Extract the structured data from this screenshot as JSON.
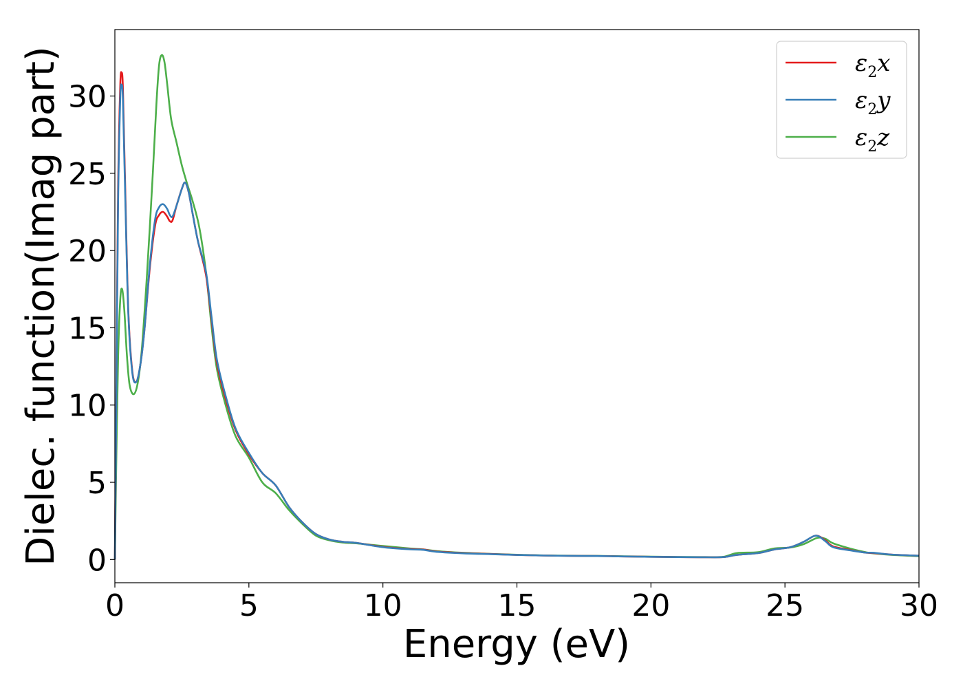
{
  "chart_data": {
    "type": "line",
    "xlabel": "Energy (eV)",
    "ylabel": "Dielec. function(Imag part)",
    "xlim": [
      0,
      30
    ],
    "ylim": [
      -1.5,
      34.3
    ],
    "xticks": [
      0,
      5,
      10,
      15,
      20,
      25,
      30
    ],
    "yticks": [
      0,
      5,
      10,
      15,
      20,
      25,
      30
    ],
    "grid": false,
    "legend_position": "top-right",
    "series": [
      {
        "name": "ε2x",
        "symbol": "ε",
        "sub": "2",
        "axis": "x",
        "color": "#e41a1c",
        "points": [
          [
            0,
            0
          ],
          [
            0.05,
            10
          ],
          [
            0.12,
            24
          ],
          [
            0.2,
            30.6
          ],
          [
            0.25,
            31.5
          ],
          [
            0.3,
            30.5
          ],
          [
            0.38,
            24.5
          ],
          [
            0.5,
            16.2
          ],
          [
            0.65,
            12.2
          ],
          [
            0.8,
            11.5
          ],
          [
            0.95,
            12.6
          ],
          [
            1.1,
            14.8
          ],
          [
            1.3,
            18.8
          ],
          [
            1.5,
            21.6
          ],
          [
            1.65,
            22.3
          ],
          [
            1.8,
            22.5
          ],
          [
            1.95,
            22.2
          ],
          [
            2.05,
            21.9
          ],
          [
            2.15,
            21.95
          ],
          [
            2.3,
            22.9
          ],
          [
            2.5,
            24.0
          ],
          [
            2.62,
            24.4
          ],
          [
            2.75,
            23.8
          ],
          [
            2.9,
            22.4
          ],
          [
            3.1,
            20.6
          ],
          [
            3.4,
            18.4
          ],
          [
            3.6,
            15.6
          ],
          [
            3.8,
            12.8
          ],
          [
            4.1,
            10.6
          ],
          [
            4.5,
            8.4
          ],
          [
            5.0,
            6.8
          ],
          [
            5.5,
            5.6
          ],
          [
            6.0,
            4.8
          ],
          [
            6.5,
            3.4
          ],
          [
            7.0,
            2.4
          ],
          [
            7.5,
            1.65
          ],
          [
            8.0,
            1.3
          ],
          [
            8.5,
            1.15
          ],
          [
            9.0,
            1.08
          ],
          [
            10.0,
            0.82
          ],
          [
            11.0,
            0.68
          ],
          [
            11.5,
            0.65
          ],
          [
            12.0,
            0.52
          ],
          [
            13.0,
            0.42
          ],
          [
            14.0,
            0.36
          ],
          [
            15.0,
            0.3
          ],
          [
            16.0,
            0.26
          ],
          [
            17.0,
            0.24
          ],
          [
            18.0,
            0.23
          ],
          [
            19.0,
            0.2
          ],
          [
            20.0,
            0.18
          ],
          [
            21.0,
            0.16
          ],
          [
            22.0,
            0.15
          ],
          [
            22.7,
            0.16
          ],
          [
            23.2,
            0.3
          ],
          [
            24.0,
            0.42
          ],
          [
            24.6,
            0.65
          ],
          [
            25.2,
            0.8
          ],
          [
            25.7,
            1.15
          ],
          [
            26.15,
            1.55
          ],
          [
            26.5,
            1.25
          ],
          [
            26.8,
            0.85
          ],
          [
            27.5,
            0.6
          ],
          [
            28.0,
            0.45
          ],
          [
            28.3,
            0.42
          ],
          [
            29.0,
            0.32
          ],
          [
            30.0,
            0.25
          ]
        ]
      },
      {
        "name": "ε2y",
        "symbol": "ε",
        "sub": "2",
        "axis": "y",
        "color": "#377eb8",
        "points": [
          [
            0,
            0
          ],
          [
            0.05,
            9.5
          ],
          [
            0.12,
            23
          ],
          [
            0.2,
            29.8
          ],
          [
            0.25,
            30.7
          ],
          [
            0.3,
            29.8
          ],
          [
            0.38,
            24
          ],
          [
            0.5,
            16
          ],
          [
            0.65,
            12.1
          ],
          [
            0.8,
            11.5
          ],
          [
            0.95,
            12.6
          ],
          [
            1.1,
            14.8
          ],
          [
            1.3,
            19
          ],
          [
            1.5,
            22
          ],
          [
            1.65,
            22.8
          ],
          [
            1.8,
            23.0
          ],
          [
            1.95,
            22.7
          ],
          [
            2.05,
            22.3
          ],
          [
            2.15,
            22.2
          ],
          [
            2.3,
            22.9
          ],
          [
            2.5,
            24.0
          ],
          [
            2.62,
            24.4
          ],
          [
            2.75,
            23.8
          ],
          [
            2.9,
            22.4
          ],
          [
            3.1,
            20.6
          ],
          [
            3.4,
            18.6
          ],
          [
            3.6,
            15.8
          ],
          [
            3.8,
            13.0
          ],
          [
            4.1,
            10.8
          ],
          [
            4.5,
            8.5
          ],
          [
            5.0,
            6.9
          ],
          [
            5.5,
            5.6
          ],
          [
            6.0,
            4.8
          ],
          [
            6.5,
            3.4
          ],
          [
            7.0,
            2.4
          ],
          [
            7.5,
            1.65
          ],
          [
            8.0,
            1.3
          ],
          [
            8.5,
            1.15
          ],
          [
            9.0,
            1.08
          ],
          [
            10.0,
            0.8
          ],
          [
            11.0,
            0.66
          ],
          [
            11.5,
            0.63
          ],
          [
            12.0,
            0.5
          ],
          [
            13.0,
            0.4
          ],
          [
            14.0,
            0.35
          ],
          [
            15.0,
            0.3
          ],
          [
            16.0,
            0.26
          ],
          [
            17.0,
            0.24
          ],
          [
            18.0,
            0.23
          ],
          [
            19.0,
            0.2
          ],
          [
            20.0,
            0.18
          ],
          [
            21.0,
            0.16
          ],
          [
            22.0,
            0.15
          ],
          [
            22.7,
            0.16
          ],
          [
            23.2,
            0.3
          ],
          [
            24.0,
            0.42
          ],
          [
            24.6,
            0.65
          ],
          [
            25.2,
            0.8
          ],
          [
            25.7,
            1.15
          ],
          [
            26.15,
            1.55
          ],
          [
            26.5,
            1.2
          ],
          [
            26.8,
            0.8
          ],
          [
            27.5,
            0.58
          ],
          [
            28.0,
            0.45
          ],
          [
            28.3,
            0.44
          ],
          [
            29.0,
            0.32
          ],
          [
            30.0,
            0.25
          ]
        ]
      },
      {
        "name": "ε2z",
        "symbol": "ε",
        "sub": "2",
        "axis": "z",
        "color": "#4daf4a",
        "points": [
          [
            0,
            0
          ],
          [
            0.05,
            6
          ],
          [
            0.12,
            13
          ],
          [
            0.2,
            16.8
          ],
          [
            0.27,
            17.5
          ],
          [
            0.35,
            16.2
          ],
          [
            0.45,
            13.2
          ],
          [
            0.55,
            11.3
          ],
          [
            0.7,
            10.7
          ],
          [
            0.85,
            11.4
          ],
          [
            1.0,
            13.5
          ],
          [
            1.2,
            18.5
          ],
          [
            1.4,
            24.5
          ],
          [
            1.55,
            29.5
          ],
          [
            1.65,
            32.0
          ],
          [
            1.75,
            32.65
          ],
          [
            1.85,
            32.2
          ],
          [
            1.95,
            30.8
          ],
          [
            2.1,
            28.5
          ],
          [
            2.3,
            27.0
          ],
          [
            2.5,
            25.5
          ],
          [
            2.7,
            24.3
          ],
          [
            2.9,
            23.2
          ],
          [
            3.15,
            21.5
          ],
          [
            3.4,
            18.6
          ],
          [
            3.6,
            15.2
          ],
          [
            3.8,
            12.4
          ],
          [
            4.1,
            10.2
          ],
          [
            4.5,
            8.0
          ],
          [
            5.0,
            6.6
          ],
          [
            5.5,
            5.0
          ],
          [
            6.0,
            4.3
          ],
          [
            6.5,
            3.2
          ],
          [
            7.0,
            2.3
          ],
          [
            7.5,
            1.55
          ],
          [
            8.0,
            1.25
          ],
          [
            8.5,
            1.1
          ],
          [
            9.0,
            1.05
          ],
          [
            10.0,
            0.88
          ],
          [
            11.0,
            0.72
          ],
          [
            11.5,
            0.66
          ],
          [
            12.0,
            0.55
          ],
          [
            13.0,
            0.44
          ],
          [
            14.0,
            0.37
          ],
          [
            15.0,
            0.31
          ],
          [
            16.0,
            0.27
          ],
          [
            17.0,
            0.25
          ],
          [
            18.0,
            0.24
          ],
          [
            19.0,
            0.21
          ],
          [
            20.0,
            0.19
          ],
          [
            21.0,
            0.17
          ],
          [
            22.0,
            0.16
          ],
          [
            22.7,
            0.18
          ],
          [
            23.2,
            0.42
          ],
          [
            24.0,
            0.48
          ],
          [
            24.6,
            0.72
          ],
          [
            25.2,
            0.78
          ],
          [
            25.7,
            1.0
          ],
          [
            26.2,
            1.4
          ],
          [
            26.5,
            1.35
          ],
          [
            26.8,
            1.05
          ],
          [
            27.5,
            0.68
          ],
          [
            28.0,
            0.48
          ],
          [
            28.3,
            0.4
          ],
          [
            29.0,
            0.3
          ],
          [
            30.0,
            0.22
          ]
        ]
      }
    ]
  }
}
